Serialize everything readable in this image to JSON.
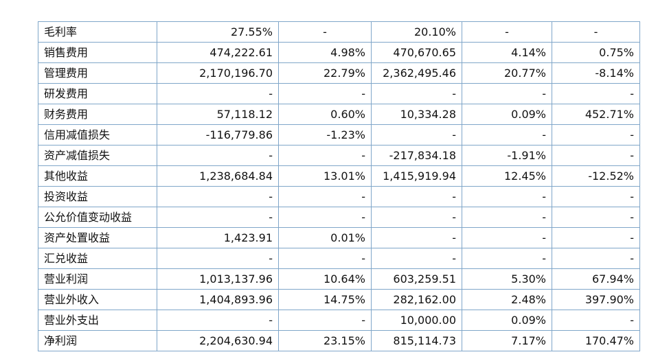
{
  "table": {
    "rows": [
      {
        "name": "毛利率",
        "c1": "27.55%",
        "c2": "-",
        "c3": "20.10%",
        "c4": "-",
        "c5": "-",
        "centered": true
      },
      {
        "name": "销售费用",
        "c1": "474,222.61",
        "c2": "4.98%",
        "c3": "470,670.65",
        "c4": "4.14%",
        "c5": "0.75%"
      },
      {
        "name": "管理费用",
        "c1": "2,170,196.70",
        "c2": "22.79%",
        "c3": "2,362,495.46",
        "c4": "20.77%",
        "c5": "-8.14%"
      },
      {
        "name": "研发费用",
        "c1": "-",
        "c2": "-",
        "c3": "-",
        "c4": "-",
        "c5": "-"
      },
      {
        "name": "财务费用",
        "c1": "57,118.12",
        "c2": "0.60%",
        "c3": "10,334.28",
        "c4": "0.09%",
        "c5": "452.71%"
      },
      {
        "name": "信用减值损失",
        "c1": "-116,779.86",
        "c2": "-1.23%",
        "c3": "-",
        "c4": "-",
        "c5": "-"
      },
      {
        "name": "资产减值损失",
        "c1": "-",
        "c2": "-",
        "c3": "-217,834.18",
        "c4": "-1.91%",
        "c5": "-"
      },
      {
        "name": "其他收益",
        "c1": "1,238,684.84",
        "c2": "13.01%",
        "c3": "1,415,919.94",
        "c4": "12.45%",
        "c5": "-12.52%"
      },
      {
        "name": "投资收益",
        "c1": "-",
        "c2": "-",
        "c3": "-",
        "c4": "-",
        "c5": "-"
      },
      {
        "name": "公允价值变动收益",
        "c1": "-",
        "c2": "-",
        "c3": "-",
        "c4": "-",
        "c5": "-"
      },
      {
        "name": "资产处置收益",
        "c1": "1,423.91",
        "c2": "0.01%",
        "c3": "-",
        "c4": "-",
        "c5": "-"
      },
      {
        "name": "汇兑收益",
        "c1": "-",
        "c2": "-",
        "c3": "-",
        "c4": "-",
        "c5": "-"
      },
      {
        "name": "营业利润",
        "c1": "1,013,137.96",
        "c2": "10.64%",
        "c3": "603,259.51",
        "c4": "5.30%",
        "c5": "67.94%"
      },
      {
        "name": "营业外收入",
        "c1": "1,404,893.96",
        "c2": "14.75%",
        "c3": "282,162.00",
        "c4": "2.48%",
        "c5": "397.90%"
      },
      {
        "name": "营业外支出",
        "c1": "-",
        "c2": "-",
        "c3": "10,000.00",
        "c4": "0.09%",
        "c5": "-"
      },
      {
        "name": "净利润",
        "c1": "2,204,630.94",
        "c2": "23.15%",
        "c3": "815,114.73",
        "c4": "7.17%",
        "c5": "170.47%"
      }
    ]
  }
}
